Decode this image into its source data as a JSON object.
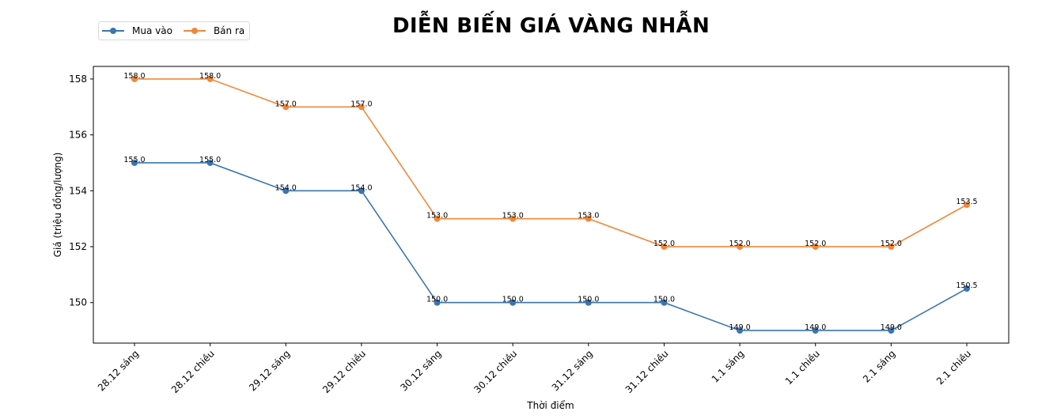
{
  "chart_data": {
    "type": "line",
    "title": "DIỄN BIẾN GIÁ VÀNG NHẪN",
    "xlabel": "Thời điểm",
    "ylabel": "Giá (triệu đồng/lượng)",
    "categories": [
      "28.12 sáng",
      "28.12 chiều",
      "29.12 sáng",
      "29.12 chiều",
      "30.12 sáng",
      "30.12 chiều",
      "31.12 sáng",
      "31.12 chiều",
      "1.1 sáng",
      "1.1 chiều",
      "2.1 sáng",
      "2.1 chiều"
    ],
    "series": [
      {
        "name": "Mua vào",
        "color": "#3a75b0",
        "values": [
          155.0,
          155.0,
          154.0,
          154.0,
          150.0,
          150.0,
          150.0,
          150.0,
          149.0,
          149.0,
          149.0,
          150.5
        ]
      },
      {
        "name": "Bán ra",
        "color": "#f0883a",
        "values": [
          158.0,
          158.0,
          157.0,
          157.0,
          153.0,
          153.0,
          153.0,
          152.0,
          152.0,
          152.0,
          152.0,
          153.5
        ]
      }
    ],
    "yticks": [
      150,
      152,
      154,
      156,
      158
    ],
    "ylim": [
      148.55,
      158.45
    ],
    "grid": false,
    "legend_position": "upper left (outside, above axes)",
    "data_labels": true
  },
  "legend": {
    "items": [
      {
        "label": "Mua vào",
        "color": "#3a75b0"
      },
      {
        "label": "Bán ra",
        "color": "#f0883a"
      }
    ]
  }
}
